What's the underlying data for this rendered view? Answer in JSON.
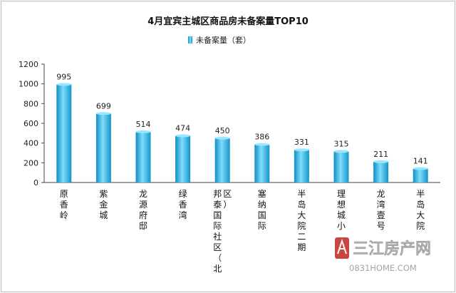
{
  "chart_data": {
    "type": "bar",
    "title": "4月宜宾主城区商品房未备案量TOP10",
    "legend": {
      "label": "未备案量（套）",
      "position": "top"
    },
    "xlabel": "",
    "ylabel": "",
    "ylim": [
      0,
      1200
    ],
    "yticks": [
      0,
      200,
      400,
      600,
      800,
      1000,
      1200
    ],
    "grid": false,
    "bar_color": "#29b8e6",
    "categories": [
      "原香岭",
      "紫金城",
      "龙源府邸",
      "绿香湾",
      "邦泰国际社区（北区）",
      "塞纳国际",
      "半岛大院二期",
      "理想城小",
      "龙湾壹号",
      "半岛大院"
    ],
    "series": [
      {
        "name": "未备案量（套）",
        "values": [
          995,
          699,
          514,
          474,
          450,
          386,
          331,
          315,
          211,
          141
        ]
      }
    ]
  },
  "watermark": {
    "brand": "三江房产网",
    "url": "0831HOME.COM"
  }
}
